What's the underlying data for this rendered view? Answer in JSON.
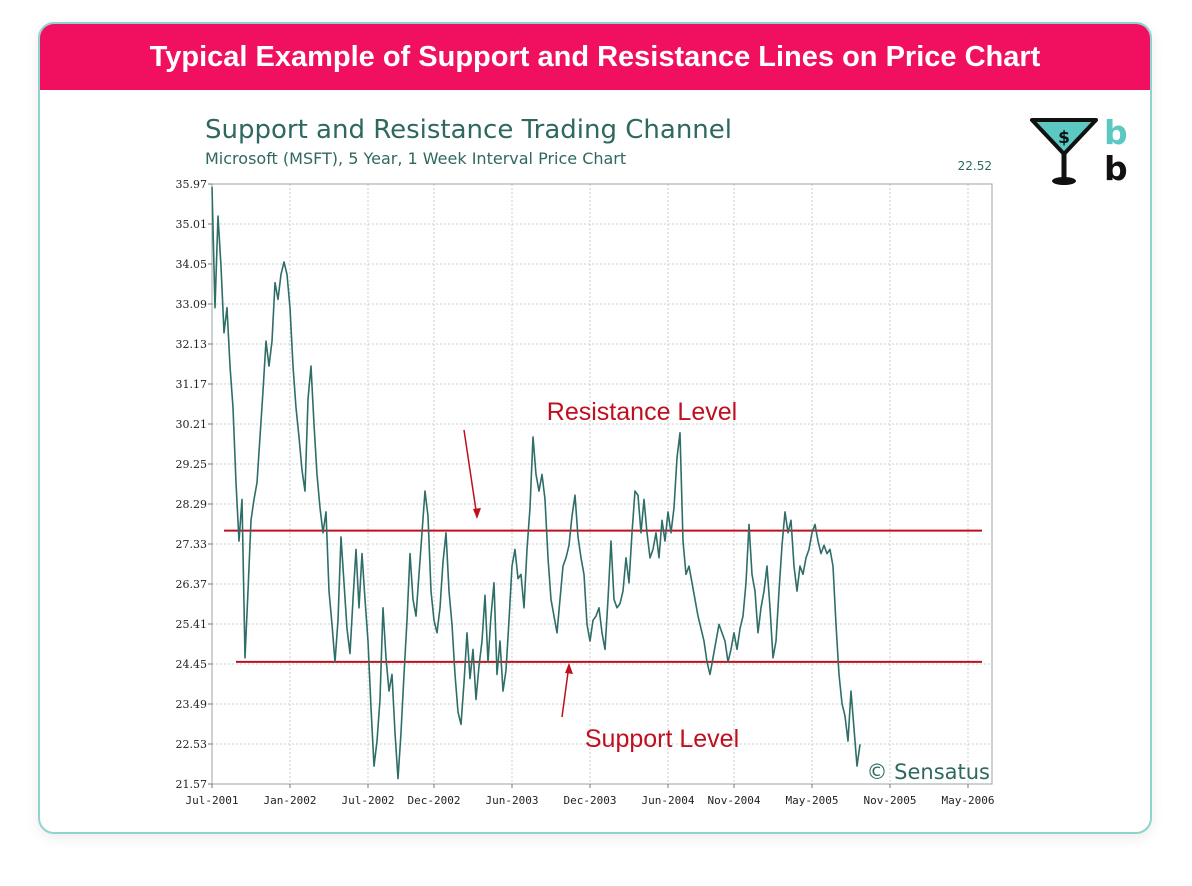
{
  "banner": {
    "title": "Typical Example of Support and Resistance Lines on Price Chart"
  },
  "logo": {
    "icon": "martini-dollar-icon",
    "letters": [
      "b",
      "b"
    ],
    "accent": "#5cc8c2",
    "dark": "#111111"
  },
  "colors": {
    "banner": "#f0105f",
    "border": "#8fd3cf",
    "title_text": "#2f6860",
    "series": "#2f6e68",
    "level_line": "#c0101f",
    "annotation": "#c0101f"
  },
  "chart_data": {
    "type": "line",
    "title": "Support and Resistance Trading Channel",
    "subtitle": "Microsoft (MSFT), 5 Year, 1 Week Interval Price Chart",
    "last_price_label": "22.52",
    "watermark": "© Sensatus",
    "xlabel": "",
    "ylabel": "",
    "ylim": [
      21.57,
      35.97
    ],
    "xlim": [
      0,
      260
    ],
    "y_ticks": [
      "35.97",
      "35.01",
      "34.05",
      "33.09",
      "32.13",
      "31.17",
      "30.21",
      "29.25",
      "28.29",
      "27.33",
      "26.37",
      "25.41",
      "24.45",
      "23.49",
      "22.53",
      "21.57"
    ],
    "x_ticks": [
      {
        "label": "Jul-2001",
        "week": 0
      },
      {
        "label": "Jan-2002",
        "week": 26
      },
      {
        "label": "Jul-2002",
        "week": 52
      },
      {
        "label": "Dec-2002",
        "week": 74
      },
      {
        "label": "Jun-2003",
        "week": 100
      },
      {
        "label": "Dec-2003",
        "week": 126
      },
      {
        "label": "Jun-2004",
        "week": 152
      },
      {
        "label": "Nov-2004",
        "week": 174
      },
      {
        "label": "May-2005",
        "week": 200
      },
      {
        "label": "Nov-2005",
        "week": 226
      },
      {
        "label": "May-2006",
        "week": 252
      }
    ],
    "grid": true,
    "levels": [
      {
        "name": "resistance",
        "value": 27.65,
        "x_start_week": 4,
        "x_end_week": 260
      },
      {
        "name": "support",
        "value": 24.5,
        "x_start_week": 8,
        "x_end_week": 260
      }
    ],
    "annotations": [
      {
        "text": "Resistance Level",
        "target": "resistance",
        "anchor_week": 80,
        "anchor_price": 30.4,
        "point_week": 88,
        "point_price": 27.75
      },
      {
        "text": "Support Level",
        "target": "support",
        "anchor_week": 80,
        "anchor_price": 22.55,
        "point_week": 110,
        "point_price": 24.4
      }
    ],
    "series": [
      {
        "name": "MSFT",
        "points": [
          [
            0,
            35.9
          ],
          [
            1,
            33.0
          ],
          [
            2,
            35.2
          ],
          [
            3,
            34.0
          ],
          [
            4,
            32.4
          ],
          [
            5,
            33.0
          ],
          [
            6,
            31.6
          ],
          [
            7,
            30.6
          ],
          [
            8,
            28.8
          ],
          [
            9,
            27.4
          ],
          [
            10,
            28.4
          ],
          [
            11,
            24.6
          ],
          [
            12,
            26.2
          ],
          [
            13,
            27.9
          ],
          [
            14,
            28.4
          ],
          [
            15,
            28.8
          ],
          [
            16,
            29.9
          ],
          [
            17,
            31.0
          ],
          [
            18,
            32.2
          ],
          [
            19,
            31.6
          ],
          [
            20,
            32.2
          ],
          [
            21,
            33.6
          ],
          [
            22,
            33.2
          ],
          [
            23,
            33.8
          ],
          [
            24,
            34.1
          ],
          [
            25,
            33.8
          ],
          [
            26,
            33.0
          ],
          [
            27,
            31.6
          ],
          [
            28,
            30.6
          ],
          [
            29,
            29.9
          ],
          [
            30,
            29.1
          ],
          [
            31,
            28.6
          ],
          [
            32,
            30.8
          ],
          [
            33,
            31.6
          ],
          [
            34,
            30.2
          ],
          [
            35,
            29.0
          ],
          [
            36,
            28.2
          ],
          [
            37,
            27.6
          ],
          [
            38,
            28.1
          ],
          [
            39,
            26.2
          ],
          [
            40,
            25.4
          ],
          [
            41,
            24.5
          ],
          [
            42,
            25.5
          ],
          [
            43,
            27.5
          ],
          [
            44,
            26.4
          ],
          [
            45,
            25.3
          ],
          [
            46,
            24.7
          ],
          [
            47,
            26.0
          ],
          [
            48,
            27.2
          ],
          [
            49,
            25.8
          ],
          [
            50,
            27.1
          ],
          [
            51,
            26.0
          ],
          [
            52,
            25.0
          ],
          [
            53,
            23.4
          ],
          [
            54,
            22.0
          ],
          [
            55,
            22.6
          ],
          [
            56,
            23.6
          ],
          [
            57,
            25.8
          ],
          [
            58,
            24.6
          ],
          [
            59,
            23.8
          ],
          [
            60,
            24.2
          ],
          [
            61,
            22.8
          ],
          [
            62,
            21.7
          ],
          [
            63,
            22.8
          ],
          [
            64,
            24.2
          ],
          [
            65,
            25.5
          ],
          [
            66,
            27.1
          ],
          [
            67,
            26.0
          ],
          [
            68,
            25.6
          ],
          [
            69,
            26.6
          ],
          [
            70,
            27.6
          ],
          [
            71,
            28.6
          ],
          [
            72,
            28.0
          ],
          [
            73,
            26.2
          ],
          [
            74,
            25.5
          ],
          [
            75,
            25.2
          ],
          [
            76,
            25.8
          ],
          [
            77,
            26.9
          ],
          [
            78,
            27.6
          ],
          [
            79,
            26.2
          ],
          [
            80,
            25.4
          ],
          [
            81,
            24.2
          ],
          [
            82,
            23.3
          ],
          [
            83,
            23.0
          ],
          [
            84,
            24.0
          ],
          [
            85,
            25.2
          ],
          [
            86,
            24.1
          ],
          [
            87,
            24.8
          ],
          [
            88,
            23.6
          ],
          [
            89,
            24.4
          ],
          [
            90,
            25.0
          ],
          [
            91,
            26.1
          ],
          [
            92,
            24.5
          ],
          [
            93,
            25.6
          ],
          [
            94,
            26.4
          ],
          [
            95,
            24.2
          ],
          [
            96,
            25.0
          ],
          [
            97,
            23.8
          ],
          [
            98,
            24.3
          ],
          [
            99,
            25.5
          ],
          [
            100,
            26.8
          ],
          [
            101,
            27.2
          ],
          [
            102,
            26.5
          ],
          [
            103,
            26.6
          ],
          [
            104,
            25.8
          ],
          [
            105,
            27.2
          ],
          [
            106,
            28.2
          ],
          [
            107,
            29.9
          ],
          [
            108,
            29.0
          ],
          [
            109,
            28.6
          ],
          [
            110,
            29.0
          ],
          [
            111,
            28.4
          ],
          [
            112,
            27.0
          ],
          [
            113,
            26.0
          ],
          [
            114,
            25.6
          ],
          [
            115,
            25.2
          ],
          [
            116,
            26.0
          ],
          [
            117,
            26.8
          ],
          [
            118,
            27.0
          ],
          [
            119,
            27.3
          ],
          [
            120,
            28.0
          ],
          [
            121,
            28.5
          ],
          [
            122,
            27.5
          ],
          [
            123,
            27.0
          ],
          [
            124,
            26.6
          ],
          [
            125,
            25.4
          ],
          [
            126,
            25.0
          ],
          [
            127,
            25.5
          ],
          [
            128,
            25.6
          ],
          [
            129,
            25.8
          ],
          [
            130,
            25.2
          ],
          [
            131,
            24.8
          ],
          [
            132,
            26.0
          ],
          [
            133,
            27.4
          ],
          [
            134,
            26.0
          ],
          [
            135,
            25.8
          ],
          [
            136,
            25.9
          ],
          [
            137,
            26.2
          ],
          [
            138,
            27.0
          ],
          [
            139,
            26.4
          ],
          [
            140,
            27.6
          ],
          [
            141,
            28.6
          ],
          [
            142,
            28.5
          ],
          [
            143,
            27.6
          ],
          [
            144,
            28.4
          ],
          [
            145,
            27.6
          ],
          [
            146,
            27.0
          ],
          [
            147,
            27.2
          ],
          [
            148,
            27.6
          ],
          [
            149,
            27.0
          ],
          [
            150,
            27.9
          ],
          [
            151,
            27.4
          ],
          [
            152,
            28.1
          ],
          [
            153,
            27.6
          ],
          [
            154,
            28.2
          ],
          [
            155,
            29.4
          ],
          [
            156,
            30.0
          ],
          [
            157,
            27.4
          ],
          [
            158,
            26.6
          ],
          [
            159,
            26.8
          ],
          [
            160,
            26.4
          ],
          [
            161,
            26.0
          ],
          [
            162,
            25.6
          ],
          [
            163,
            25.3
          ],
          [
            164,
            25.0
          ],
          [
            165,
            24.5
          ],
          [
            166,
            24.2
          ],
          [
            167,
            24.6
          ],
          [
            168,
            25.0
          ],
          [
            169,
            25.4
          ],
          [
            170,
            25.2
          ],
          [
            171,
            25.0
          ],
          [
            172,
            24.5
          ],
          [
            173,
            24.8
          ],
          [
            174,
            25.2
          ],
          [
            175,
            24.8
          ],
          [
            176,
            25.3
          ],
          [
            177,
            25.6
          ],
          [
            178,
            26.4
          ],
          [
            179,
            27.8
          ],
          [
            180,
            26.6
          ],
          [
            181,
            26.2
          ],
          [
            182,
            25.2
          ],
          [
            183,
            25.8
          ],
          [
            184,
            26.2
          ],
          [
            185,
            26.8
          ],
          [
            186,
            25.8
          ],
          [
            187,
            24.6
          ],
          [
            188,
            25.0
          ],
          [
            189,
            26.2
          ],
          [
            190,
            27.3
          ],
          [
            191,
            28.1
          ],
          [
            192,
            27.6
          ],
          [
            193,
            27.9
          ],
          [
            194,
            26.8
          ],
          [
            195,
            26.2
          ],
          [
            196,
            26.8
          ],
          [
            197,
            26.6
          ],
          [
            198,
            27.0
          ],
          [
            199,
            27.2
          ],
          [
            200,
            27.6
          ],
          [
            201,
            27.8
          ],
          [
            202,
            27.4
          ],
          [
            203,
            27.1
          ],
          [
            204,
            27.3
          ],
          [
            205,
            27.1
          ],
          [
            206,
            27.2
          ],
          [
            207,
            26.8
          ],
          [
            208,
            25.4
          ],
          [
            209,
            24.2
          ],
          [
            210,
            23.5
          ],
          [
            211,
            23.2
          ],
          [
            212,
            22.6
          ],
          [
            213,
            23.8
          ],
          [
            214,
            22.9
          ],
          [
            215,
            22.0
          ],
          [
            216,
            22.52
          ]
        ]
      }
    ]
  }
}
